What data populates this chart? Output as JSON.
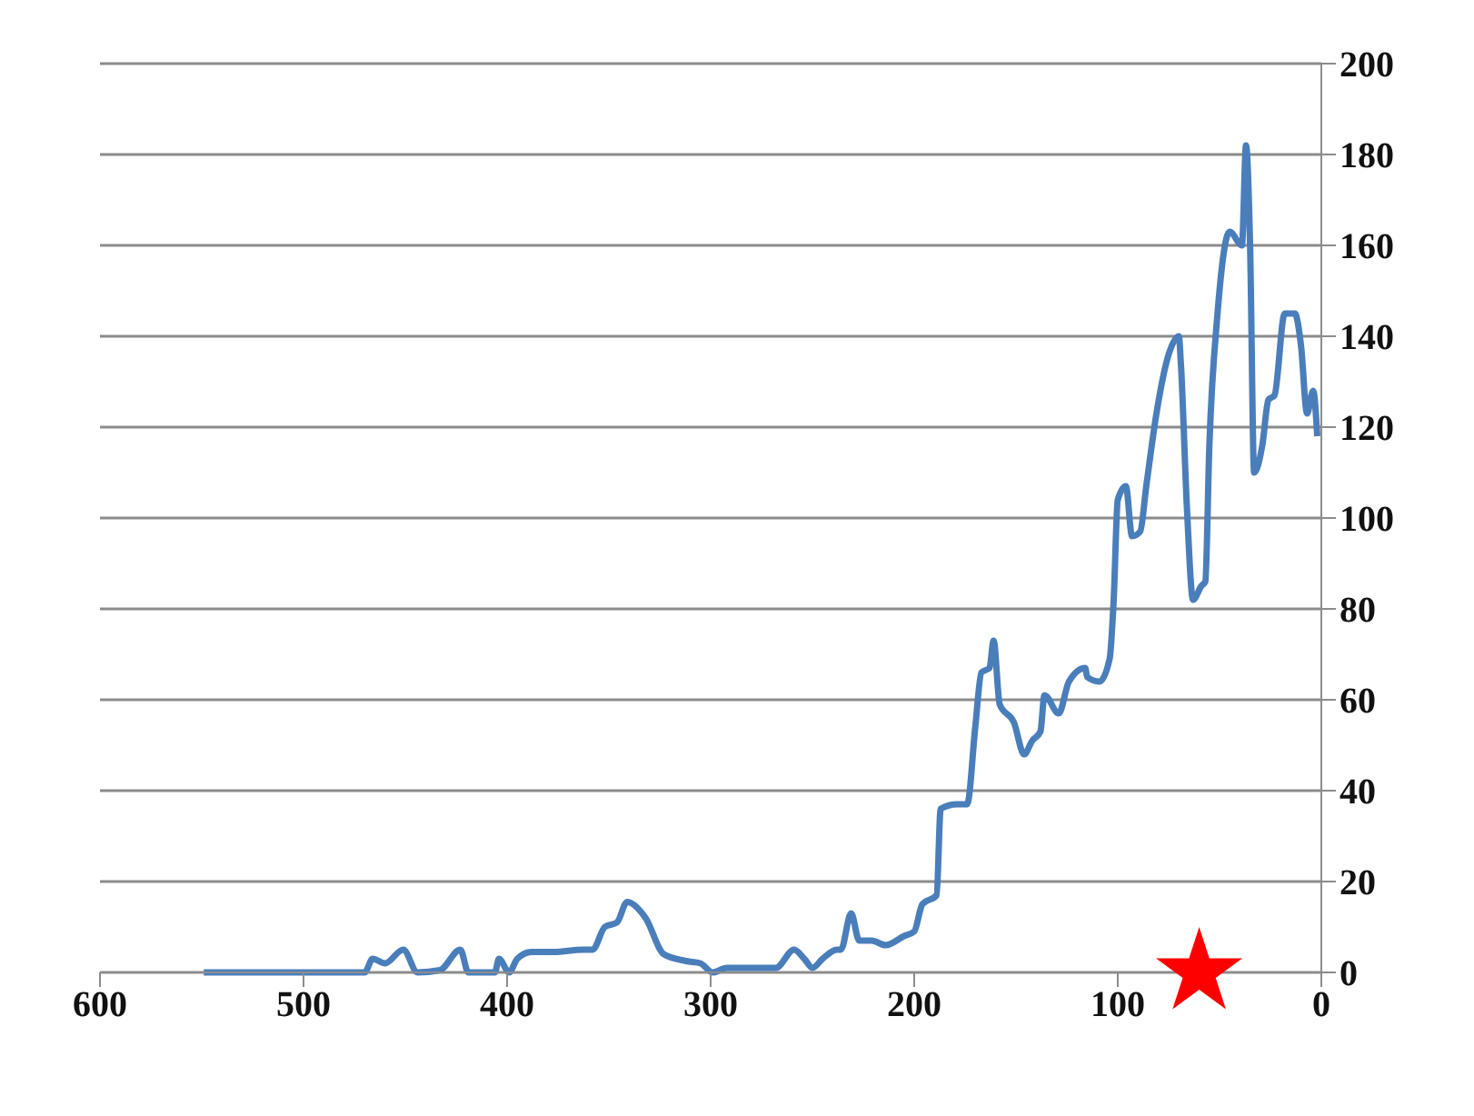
{
  "chart_data": {
    "type": "line",
    "xlim": [
      600,
      0
    ],
    "xticks": [
      600,
      500,
      400,
      300,
      200,
      100,
      0
    ],
    "ylim": [
      0,
      200
    ],
    "yticks": [
      0,
      20,
      40,
      60,
      80,
      100,
      120,
      140,
      160,
      180,
      200
    ],
    "grid": "y",
    "legend": false,
    "series": [
      {
        "color": "#4a7ebb",
        "marker": "none",
        "line_style": "solid",
        "x": [
          549,
          470,
          466,
          460,
          451,
          444,
          433,
          423,
          419,
          406,
          404,
          399,
          395,
          388,
          377,
          363,
          358,
          352,
          346,
          341,
          332,
          323,
          312,
          305,
          299,
          292,
          268,
          259,
          254,
          250,
          245,
          238,
          236,
          231,
          227,
          221,
          214,
          205,
          200,
          196,
          189,
          187,
          179,
          174,
          170,
          167,
          163,
          161,
          158,
          151,
          146,
          142,
          138,
          136,
          129,
          124,
          116,
          115,
          109,
          104,
          102,
          100,
          96,
          93,
          89,
          86,
          81,
          75,
          70,
          69,
          66,
          63,
          59,
          57,
          55,
          51,
          45,
          39,
          37,
          35,
          33,
          29,
          26,
          23,
          18,
          13,
          10,
          7,
          4,
          2
        ],
        "values": [
          0,
          0,
          3,
          2,
          5,
          0,
          0.5,
          5,
          0,
          0,
          3,
          0,
          3,
          4.5,
          4.5,
          5,
          5,
          10,
          11,
          15.5,
          12,
          4,
          2.5,
          2,
          0,
          1,
          1,
          5,
          3,
          1,
          3,
          5,
          5,
          13,
          7,
          7,
          6,
          8,
          9,
          15,
          17,
          36,
          37,
          37,
          54,
          66,
          67,
          73,
          59,
          55,
          48,
          51,
          53,
          61,
          57,
          64,
          67,
          65,
          64,
          69,
          82,
          104,
          107,
          96,
          97,
          107,
          123,
          136,
          140,
          134,
          102,
          82,
          85,
          86,
          116,
          145,
          163,
          160,
          182,
          160,
          110,
          116,
          126,
          127,
          145,
          145,
          138,
          123,
          128,
          118
        ]
      },
      {
        "type": "scatter",
        "color": "#ff0000",
        "marker": "star",
        "x": [
          60
        ],
        "values": [
          0
        ]
      }
    ]
  }
}
